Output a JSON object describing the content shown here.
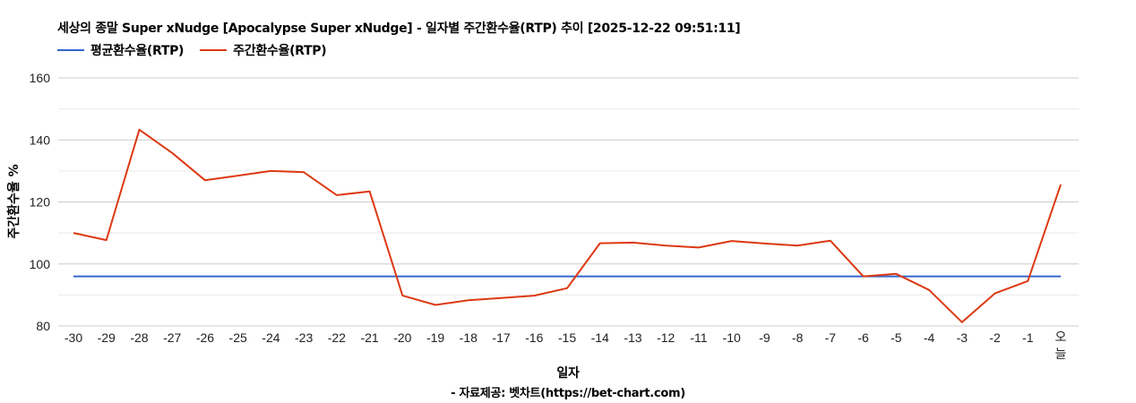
{
  "title": "세상의 종말 Super xNudge [Apocalypse Super xNudge] - 일자별 주간환수율(RTP) 추이 [2025-12-22 09:51:11]",
  "legend": [
    {
      "label": "평균환수율(RTP)",
      "color": "#3366cc"
    },
    {
      "label": "주간환수율(RTP)",
      "color": "#dc3912"
    }
  ],
  "xlabel": "일자",
  "ylabel": "주간환수율 %",
  "source": "- 자료제공: 벳차트(https://bet-chart.com)",
  "chart_data": {
    "type": "line",
    "title": "세상의 종말 Super xNudge [Apocalypse Super xNudge] - 일자별 주간환수율(RTP) 추이 [2025-12-22 09:51:11]",
    "xlabel": "일자",
    "ylabel": "주간환수율 %",
    "ylim": [
      80,
      160
    ],
    "yticks": [
      80,
      100,
      120,
      140,
      160
    ],
    "grid": true,
    "legend_position": "top",
    "categories": [
      "-30",
      "-29",
      "-28",
      "-27",
      "-26",
      "-25",
      "-24",
      "-23",
      "-22",
      "-21",
      "-20",
      "-19",
      "-18",
      "-17",
      "-16",
      "-15",
      "-14",
      "-13",
      "-12",
      "-11",
      "-10",
      "-9",
      "-8",
      "-7",
      "-6",
      "-5",
      "-4",
      "-3",
      "-2",
      "-1",
      "오늘"
    ],
    "series": [
      {
        "name": "평균환수율(RTP)",
        "color": "#3366cc",
        "values": [
          96.0,
          96.0,
          96.0,
          96.0,
          96.0,
          96.0,
          96.0,
          96.0,
          96.0,
          96.0,
          96.0,
          96.0,
          96.0,
          96.0,
          96.0,
          96.0,
          96.0,
          96.0,
          96.0,
          96.0,
          96.0,
          96.0,
          96.0,
          96.0,
          96.0,
          96.0,
          96.0,
          96.0,
          96.0,
          96.0,
          96.0
        ]
      },
      {
        "name": "주간환수율(RTP)",
        "color": "#dc3912",
        "values": [
          110.0,
          107.7,
          143.3,
          135.8,
          127.0,
          128.5,
          130.0,
          129.6,
          122.2,
          123.4,
          89.8,
          86.8,
          88.3,
          89.0,
          89.8,
          92.2,
          106.7,
          106.9,
          105.9,
          105.3,
          107.4,
          106.6,
          105.9,
          107.5,
          96.0,
          96.8,
          91.6,
          81.2,
          90.5,
          94.5,
          125.6
        ]
      }
    ]
  }
}
